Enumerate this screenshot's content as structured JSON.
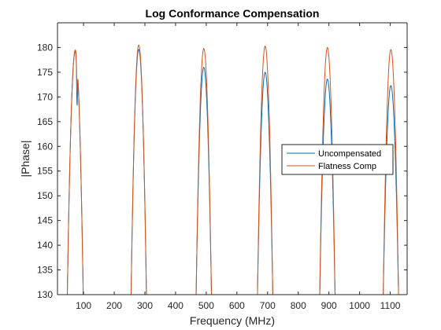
{
  "chart_data": {
    "type": "line",
    "title": "Log Conformance Compensation",
    "xlabel": "Frequency (MHz)",
    "ylabel": "|Phase|",
    "xlim": [
      15,
      1155
    ],
    "ylim": [
      130,
      185
    ],
    "xticks": [
      100,
      200,
      300,
      400,
      500,
      600,
      700,
      800,
      900,
      1000,
      1100
    ],
    "yticks": [
      130,
      135,
      140,
      145,
      150,
      155,
      160,
      165,
      170,
      175,
      180
    ],
    "grid": false,
    "legend_position": "right",
    "series": [
      {
        "name": "Uncompensated",
        "color": "#0072BD",
        "peaks": [
          {
            "center": 73,
            "peak": 179.2,
            "halfwidth": 27,
            "dip": 168.0
          },
          {
            "center": 280,
            "peak": 179.6,
            "halfwidth": 26
          },
          {
            "center": 492,
            "peak": 176.0,
            "halfwidth": 26
          },
          {
            "center": 692,
            "peak": 175.0,
            "halfwidth": 26
          },
          {
            "center": 895,
            "peak": 173.6,
            "halfwidth": 26
          },
          {
            "center": 1102,
            "peak": 172.3,
            "halfwidth": 26
          }
        ]
      },
      {
        "name": "Flatness Comp",
        "color": "#D95319",
        "peaks": [
          {
            "center": 73,
            "peak": 179.5,
            "halfwidth": 27,
            "dip": 170.8
          },
          {
            "center": 280,
            "peak": 180.5,
            "halfwidth": 26
          },
          {
            "center": 492,
            "peak": 179.8,
            "halfwidth": 26
          },
          {
            "center": 692,
            "peak": 180.3,
            "halfwidth": 26
          },
          {
            "center": 895,
            "peak": 180.0,
            "halfwidth": 26
          },
          {
            "center": 1102,
            "peak": 179.6,
            "halfwidth": 26
          }
        ]
      }
    ]
  }
}
